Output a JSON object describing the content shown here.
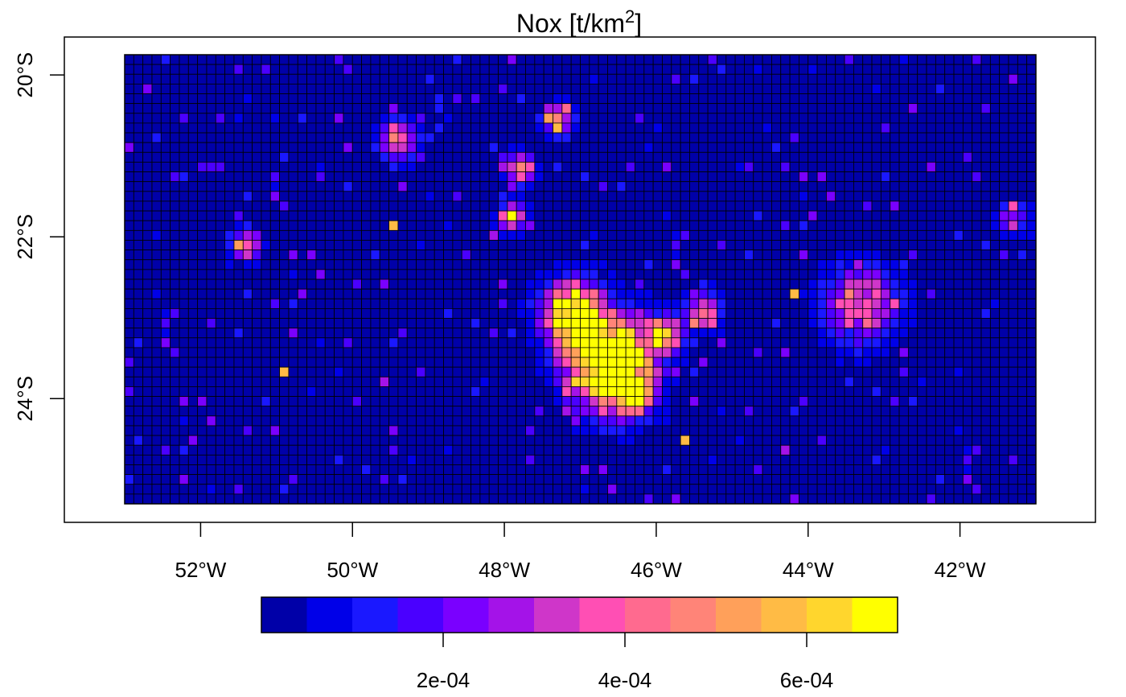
{
  "map": {
    "title_main": "Nox [t",
    "title_slash": "/",
    "title_unit": "km",
    "title_exp": "2",
    "title_close": "]",
    "x_ticks": [
      {
        "value": -52,
        "label": "52°W"
      },
      {
        "value": -50,
        "label": "50°W"
      },
      {
        "value": -48,
        "label": "48°W"
      },
      {
        "value": -46,
        "label": "46°W"
      },
      {
        "value": -44,
        "label": "44°W"
      },
      {
        "value": -42,
        "label": "42°W"
      }
    ],
    "y_ticks": [
      {
        "value": -20,
        "label": "20°S"
      },
      {
        "value": -22,
        "label": "22°S"
      },
      {
        "value": -24,
        "label": "24°S"
      }
    ],
    "extent": {
      "lon": [
        -53.0,
        -41.0
      ],
      "lat": [
        -25.3,
        -19.75
      ]
    },
    "grid": {
      "cols": 100,
      "rows": 46
    }
  },
  "colorbar": {
    "colors": [
      "#0000a8",
      "#0000e8",
      "#1a18ff",
      "#4a00ff",
      "#7a00ff",
      "#a413e8",
      "#cf36c9",
      "#ff4fb4",
      "#ff6a8f",
      "#ff8478",
      "#ffa05a",
      "#ffbb45",
      "#ffd62d",
      "#ffff00"
    ],
    "range": [
      0,
      0.0007
    ],
    "ticks": [
      {
        "value": 0.0002,
        "label": "2e-04"
      },
      {
        "value": 0.0004,
        "label": "4e-04"
      },
      {
        "value": 0.0006,
        "label": "6e-04"
      }
    ]
  },
  "hotspots": [
    {
      "lon": -46.6,
      "lat": -23.55,
      "amp": 0.0012,
      "spread": 0.35
    },
    {
      "lon": -47.1,
      "lat": -22.95,
      "amp": 0.0009,
      "spread": 0.25
    },
    {
      "lon": -43.3,
      "lat": -22.85,
      "amp": 0.00045,
      "spread": 0.3
    },
    {
      "lon": -46.3,
      "lat": -23.95,
      "amp": 0.0007,
      "spread": 0.15
    },
    {
      "lon": -45.9,
      "lat": -23.2,
      "amp": 0.0006,
      "spread": 0.15
    },
    {
      "lon": -47.3,
      "lat": -20.55,
      "amp": 0.0007,
      "spread": 0.12
    },
    {
      "lon": -47.8,
      "lat": -21.15,
      "amp": 0.0006,
      "spread": 0.12
    },
    {
      "lon": -49.4,
      "lat": -20.8,
      "amp": 0.0006,
      "spread": 0.15
    },
    {
      "lon": -47.9,
      "lat": -21.75,
      "amp": 0.0006,
      "spread": 0.1
    },
    {
      "lon": -45.4,
      "lat": -22.9,
      "amp": 0.0005,
      "spread": 0.15
    },
    {
      "lon": -41.3,
      "lat": -21.75,
      "amp": 0.00035,
      "spread": 0.12
    },
    {
      "lon": -51.4,
      "lat": -22.1,
      "amp": 0.0005,
      "spread": 0.12
    }
  ]
}
